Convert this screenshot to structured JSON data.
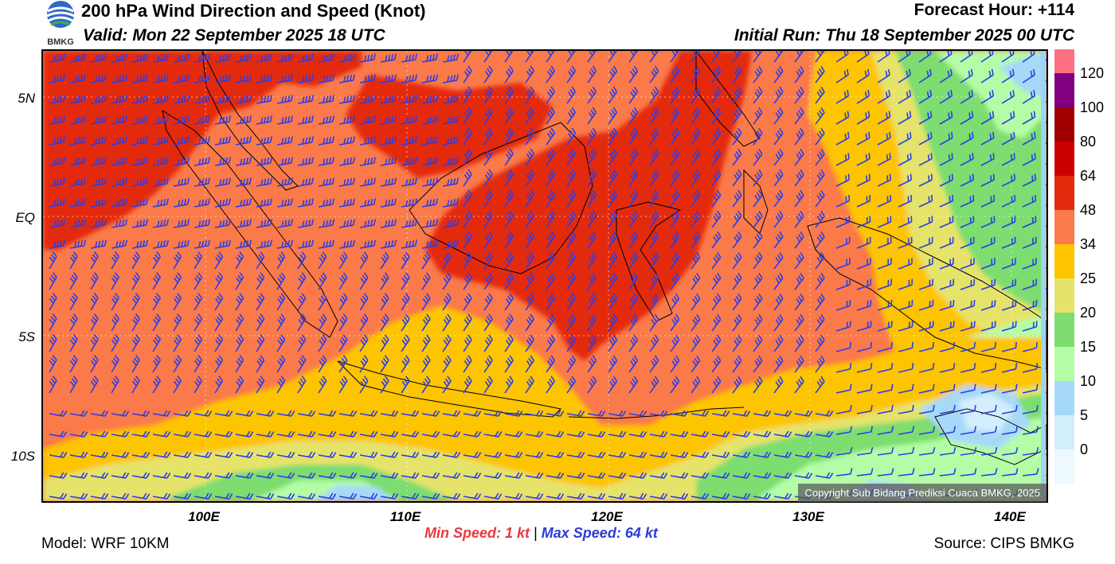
{
  "header": {
    "title": "200 hPa Wind Direction and Speed (Knot)",
    "valid": "Valid: Mon 22 September 2025 18 UTC",
    "forecast_hour": "Forecast Hour: +114",
    "initial_run": "Initial Run: Thu 18 September 2025 00 UTC"
  },
  "logo": {
    "text": "BMKG",
    "icon": "bmkg-logo-icon"
  },
  "map": {
    "lat_labels": [
      "5N",
      "EQ",
      "5S",
      "10S"
    ],
    "lon_labels": [
      "100E",
      "110E",
      "120E",
      "130E",
      "140E"
    ],
    "copyright": "Copyright Sub Bidang Prediksi Cuaca BMKG, 2025"
  },
  "legend": {
    "labels": [
      "120",
      "100",
      "80",
      "64",
      "48",
      "34",
      "25",
      "20",
      "15",
      "10",
      "5",
      "0"
    ],
    "colors": [
      "#fd6f82",
      "#800080",
      "#a00000",
      "#cc0000",
      "#e42a0c",
      "#fb7a4a",
      "#fdc400",
      "#e6e36b",
      "#7ddd6f",
      "#b4fda6",
      "#a6d9f8",
      "#d3eefd",
      "#eef8ff"
    ]
  },
  "footer": {
    "min_label": "Min Speed:",
    "min_value": "1 kt",
    "separator": "|",
    "max_label": "Max Speed:",
    "max_value": "64 kt",
    "model": "Model: WRF 10KM",
    "source": "Source: CIPS BMKG"
  },
  "colors": {
    "barb": "#2b3ee6",
    "coast": "#000000",
    "border": "#aaaaaa"
  }
}
